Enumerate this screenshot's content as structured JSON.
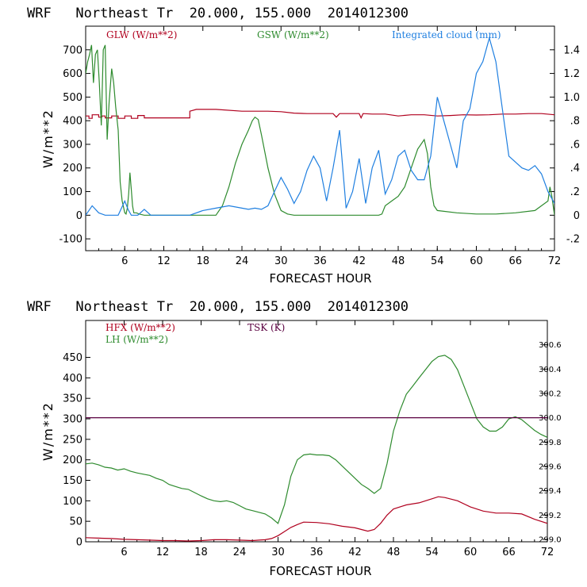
{
  "chart_data": [
    {
      "type": "line",
      "title": "WRF   Northeast Tr  20.000, 155.000  2014012300",
      "xlabel": "FORECAST HOUR",
      "ylabel": "W/m**2",
      "xlim": [
        0,
        72
      ],
      "ylim": [
        -150,
        800
      ],
      "y2lim": [
        -0.3,
        1.6
      ],
      "x_ticks": [
        6,
        12,
        18,
        24,
        30,
        36,
        42,
        48,
        54,
        60,
        66,
        72
      ],
      "y_ticks": [
        -100,
        0,
        100,
        200,
        300,
        400,
        500,
        600,
        700
      ],
      "y2_ticks": [
        -0.2,
        0,
        0.2,
        0.4,
        0.6,
        0.8,
        1.0,
        1.2,
        1.4
      ],
      "y2_tick_labels": [
        "-.2",
        "0",
        ".2",
        ".4",
        ".6",
        ".8",
        "1.0",
        "1.2",
        "1.4"
      ],
      "series": [
        {
          "name": "GLW (W/m**2)",
          "color": "#b0001e",
          "axis": "left",
          "x": [
            0,
            0.5,
            0.5,
            1,
            1,
            2,
            2,
            2.5,
            2.5,
            3,
            3,
            4,
            4,
            5,
            5,
            6,
            6,
            7,
            7,
            8,
            8,
            9,
            9,
            10,
            10,
            12,
            14,
            16,
            16,
            17,
            20,
            24,
            28,
            30,
            32,
            34,
            36,
            38,
            38.5,
            39,
            42,
            42.3,
            42.6,
            44,
            46,
            48,
            50,
            52,
            54,
            56,
            58,
            60,
            62,
            64,
            66,
            68,
            70,
            72
          ],
          "y": [
            420,
            420,
            410,
            410,
            425,
            425,
            415,
            415,
            420,
            420,
            412,
            412,
            420,
            420,
            410,
            410,
            420,
            420,
            410,
            410,
            422,
            422,
            412,
            412,
            412,
            412,
            412,
            412,
            440,
            448,
            448,
            440,
            440,
            438,
            432,
            430,
            430,
            430,
            415,
            430,
            430,
            412,
            430,
            428,
            428,
            420,
            425,
            425,
            420,
            422,
            425,
            424,
            425,
            428,
            428,
            430,
            430,
            425
          ]
        },
        {
          "name": "GSW (W/m**2)",
          "color": "#2e8b2e",
          "axis": "left",
          "x": [
            0,
            0.3,
            0.6,
            0.9,
            1.2,
            1.5,
            1.8,
            2.1,
            2.4,
            2.7,
            3,
            3.3,
            3.6,
            4,
            4.3,
            4.6,
            5,
            5.3,
            5.6,
            6,
            6.2,
            6.4,
            6.6,
            6.8,
            7,
            7.2,
            7.4,
            7.8,
            8.2,
            9,
            10,
            12,
            16,
            20,
            21,
            22,
            23,
            24,
            25,
            25.6,
            26,
            26.5,
            27,
            28,
            29,
            30,
            31,
            32,
            33,
            34,
            40,
            45,
            45.5,
            46,
            47,
            48,
            49,
            50,
            51,
            52,
            52.5,
            53,
            53.5,
            54,
            57,
            60,
            63,
            66,
            69,
            70,
            71,
            71.3,
            71.6,
            72
          ],
          "y": [
            600,
            650,
            680,
            720,
            560,
            680,
            700,
            560,
            380,
            700,
            720,
            320,
            480,
            620,
            560,
            460,
            360,
            140,
            60,
            10,
            5,
            30,
            90,
            180,
            110,
            40,
            10,
            10,
            5,
            0,
            0,
            0,
            0,
            0,
            40,
            120,
            220,
            300,
            360,
            400,
            415,
            405,
            340,
            200,
            90,
            20,
            5,
            0,
            0,
            0,
            0,
            0,
            5,
            40,
            60,
            80,
            120,
            200,
            280,
            320,
            260,
            120,
            40,
            20,
            10,
            5,
            5,
            10,
            20,
            40,
            60,
            120,
            80,
            0
          ]
        },
        {
          "name": "Integrated cloud (mm)",
          "color": "#1f7fe0",
          "axis": "right",
          "x": [
            0,
            1,
            2,
            3,
            4,
            5,
            6,
            6.5,
            7,
            8,
            9,
            10,
            12,
            14,
            16,
            18,
            20,
            22,
            24,
            25,
            26,
            27,
            28,
            29,
            30,
            31,
            32,
            33,
            34,
            35,
            36,
            37,
            38,
            39,
            40,
            41,
            42,
            43,
            44,
            45,
            46,
            47,
            48,
            49,
            50,
            51,
            52,
            53,
            54,
            55,
            56,
            57,
            58,
            59,
            60,
            61,
            62,
            63,
            64,
            65,
            66,
            67,
            68,
            69,
            70,
            71,
            72
          ],
          "y": [
            0.0,
            0.08,
            0.02,
            0.0,
            0.0,
            0.0,
            0.12,
            0.05,
            0.0,
            0.0,
            0.05,
            0.0,
            0.0,
            0.0,
            0.0,
            0.04,
            0.06,
            0.08,
            0.06,
            0.05,
            0.06,
            0.05,
            0.08,
            0.2,
            0.32,
            0.22,
            0.1,
            0.2,
            0.38,
            0.5,
            0.4,
            0.12,
            0.4,
            0.72,
            0.06,
            0.2,
            0.48,
            0.1,
            0.4,
            0.55,
            0.18,
            0.3,
            0.5,
            0.55,
            0.38,
            0.3,
            0.3,
            0.5,
            1.0,
            0.8,
            0.6,
            0.4,
            0.8,
            0.9,
            1.2,
            1.3,
            1.5,
            1.3,
            0.9,
            0.5,
            0.45,
            0.4,
            0.38,
            0.42,
            0.35,
            0.2,
            0.1
          ]
        }
      ]
    },
    {
      "type": "line",
      "title": "WRF   Northeast Tr  20.000, 155.000  2014012300",
      "xlabel": "FORECAST HOUR",
      "ylabel": "W/m**2",
      "xlim": [
        0,
        72
      ],
      "ylim": [
        0,
        540
      ],
      "y2lim": [
        298.98,
        300.8
      ],
      "x_ticks": [
        6,
        12,
        18,
        24,
        30,
        36,
        42,
        48,
        54,
        60,
        66,
        72
      ],
      "y_ticks": [
        0,
        50,
        100,
        150,
        200,
        250,
        300,
        350,
        400,
        450
      ],
      "y2_ticks": [
        299.0,
        299.2,
        299.4,
        299.6,
        299.8,
        300.0,
        300.2,
        300.4,
        300.6
      ],
      "y2_tick_labels": [
        "299.0",
        "299.2",
        "299.4",
        "299.6",
        "299.8",
        "300.0",
        "300.2",
        "300.4",
        "300.6"
      ],
      "series": [
        {
          "name": "HFX (W/m**2)",
          "color": "#b0001e",
          "axis": "left",
          "x": [
            0,
            2,
            4,
            6,
            8,
            10,
            12,
            14,
            16,
            18,
            20,
            22,
            24,
            26,
            27,
            28,
            29,
            30,
            31,
            32,
            33,
            34,
            36,
            38,
            40,
            42,
            43,
            44,
            45,
            46,
            47,
            48,
            50,
            52,
            54,
            55,
            56,
            58,
            60,
            62,
            64,
            66,
            68,
            70,
            72
          ],
          "y": [
            10,
            9,
            8,
            6,
            5,
            4,
            3,
            3,
            2,
            3,
            5,
            5,
            4,
            3,
            4,
            5,
            8,
            15,
            25,
            35,
            42,
            48,
            47,
            44,
            38,
            34,
            30,
            26,
            30,
            45,
            65,
            80,
            90,
            95,
            105,
            110,
            108,
            100,
            85,
            75,
            70,
            70,
            68,
            55,
            45
          ]
        },
        {
          "name": "LH (W/m**2)",
          "color": "#2e8b2e",
          "axis": "left",
          "x": [
            0,
            1,
            2,
            3,
            4,
            5,
            6,
            7,
            8,
            9,
            10,
            11,
            12,
            13,
            14,
            15,
            16,
            17,
            18,
            19,
            20,
            21,
            22,
            23,
            24,
            25,
            26,
            27,
            28,
            29,
            30,
            31,
            32,
            33,
            34,
            35,
            36,
            37,
            38,
            39,
            40,
            41,
            42,
            43,
            44,
            45,
            46,
            47,
            48,
            49,
            50,
            51,
            52,
            53,
            54,
            55,
            56,
            57,
            58,
            59,
            60,
            61,
            62,
            63,
            64,
            65,
            66,
            67,
            68,
            69,
            70,
            71,
            72
          ],
          "y": [
            190,
            192,
            188,
            182,
            180,
            175,
            178,
            172,
            168,
            165,
            162,
            155,
            150,
            140,
            135,
            130,
            128,
            120,
            112,
            105,
            100,
            98,
            100,
            96,
            88,
            80,
            76,
            72,
            68,
            58,
            45,
            90,
            160,
            200,
            212,
            214,
            212,
            212,
            210,
            200,
            185,
            170,
            155,
            140,
            130,
            118,
            130,
            190,
            270,
            320,
            360,
            380,
            400,
            420,
            440,
            452,
            455,
            445,
            420,
            380,
            340,
            300,
            280,
            270,
            270,
            280,
            300,
            305,
            298,
            285,
            272,
            262,
            255
          ]
        },
        {
          "name": "TSK (K)",
          "color": "#5a0040",
          "axis": "right",
          "x": [
            0,
            72
          ],
          "y": [
            300.0,
            300.0
          ]
        }
      ]
    }
  ]
}
